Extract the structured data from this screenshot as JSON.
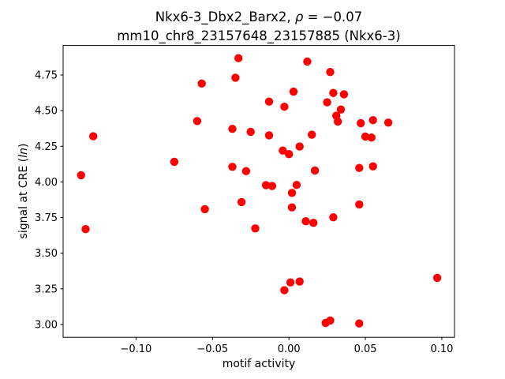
{
  "chart_data": {
    "type": "scatter",
    "title": "Nkx6-3_Dbx2_Barx2, ρ = −0.07",
    "subtitle": "mm10_chr8_23157648_23157885 (Nkx6-3)",
    "title_parts": {
      "prefix": "Nkx6-3_Dbx2_Barx2, ",
      "rho": "ρ",
      "suffix": " = −0.07"
    },
    "xlabel": "motif activity",
    "ylabel": "signal at CRE (ln)",
    "ylabel_parts": {
      "prefix": "signal at CRE (",
      "italic": "ln",
      "suffix": ")"
    },
    "marker": {
      "color": "#ff0000",
      "radius_px": 5.2
    },
    "grid": false,
    "legend": null,
    "xlim": [
      -0.1477,
      0.1083
    ],
    "ylim": [
      2.91,
      4.957
    ],
    "x_ticks": [
      -0.1,
      -0.05,
      0.0,
      0.05,
      0.1
    ],
    "x_tick_labels": [
      "−0.10",
      "−0.05",
      "0.00",
      "0.05",
      "0.10"
    ],
    "y_ticks": [
      3.0,
      3.25,
      3.5,
      3.75,
      4.0,
      4.25,
      4.5,
      4.75
    ],
    "y_tick_labels": [
      "3.00",
      "3.25",
      "3.50",
      "3.75",
      "4.00",
      "4.25",
      "4.50",
      "4.75"
    ],
    "points": [
      [
        -0.033,
        4.868
      ],
      [
        0.012,
        4.844
      ],
      [
        -0.035,
        4.731
      ],
      [
        -0.057,
        4.69
      ],
      [
        0.027,
        4.771
      ],
      [
        0.003,
        4.633
      ],
      [
        0.029,
        4.624
      ],
      [
        0.036,
        4.615
      ],
      [
        -0.013,
        4.563
      ],
      [
        -0.003,
        4.527
      ],
      [
        0.025,
        4.558
      ],
      [
        0.034,
        4.508
      ],
      [
        0.031,
        4.464
      ],
      [
        0.032,
        4.423
      ],
      [
        -0.06,
        4.427
      ],
      [
        -0.037,
        4.372
      ],
      [
        -0.025,
        4.351
      ],
      [
        -0.013,
        4.327
      ],
      [
        0.015,
        4.331
      ],
      [
        0.047,
        4.412
      ],
      [
        0.055,
        4.433
      ],
      [
        0.065,
        4.416
      ],
      [
        0.05,
        4.318
      ],
      [
        0.054,
        4.311
      ],
      [
        -0.128,
        4.32
      ],
      [
        -0.075,
        4.141
      ],
      [
        -0.004,
        4.22
      ],
      [
        0.0,
        4.195
      ],
      [
        0.007,
        4.248
      ],
      [
        -0.037,
        4.106
      ],
      [
        -0.028,
        4.076
      ],
      [
        0.017,
        4.08
      ],
      [
        0.046,
        4.098
      ],
      [
        0.055,
        4.109
      ],
      [
        -0.136,
        4.047
      ],
      [
        -0.015,
        3.977
      ],
      [
        -0.011,
        3.971
      ],
      [
        0.005,
        3.979
      ],
      [
        0.002,
        3.923
      ],
      [
        0.002,
        3.821
      ],
      [
        0.011,
        3.724
      ],
      [
        0.016,
        3.713
      ],
      [
        0.029,
        3.752
      ],
      [
        0.046,
        3.842
      ],
      [
        -0.133,
        3.669
      ],
      [
        -0.055,
        3.809
      ],
      [
        -0.031,
        3.859
      ],
      [
        -0.022,
        3.674
      ],
      [
        -0.003,
        3.24
      ],
      [
        0.001,
        3.295
      ],
      [
        0.007,
        3.301
      ],
      [
        0.097,
        3.327
      ],
      [
        0.024,
        3.011
      ],
      [
        0.027,
        3.028
      ],
      [
        0.046,
        3.007
      ]
    ]
  }
}
